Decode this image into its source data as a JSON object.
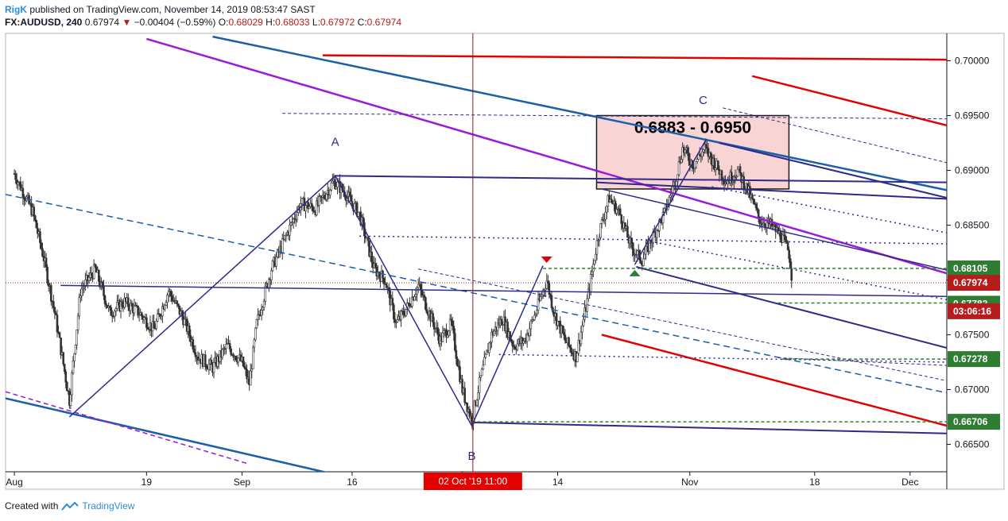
{
  "header": {
    "user": "RigK",
    "published_text": "published on TradingView.com, November 14, 2019 08:53:47 SAST",
    "symbol": "FX:AUDUSD, 240",
    "last": "0.67974",
    "change": "−0.00404 (−0.59%)",
    "open_label": "O:",
    "open": "0.68029",
    "high_label": "H:",
    "high": "0.68033",
    "low_label": "L:",
    "low": "0.67972",
    "close_label": "C:",
    "close": "0.67974"
  },
  "footer": {
    "created_with": "Created with",
    "brand": "TradingView"
  },
  "colors": {
    "up": "#26a69a",
    "down": "#b71c1c",
    "red": "#e50000",
    "blue": "#1b5fa8",
    "navy": "#2e2a8a",
    "purple": "#9b19d8",
    "green": "#2e7d32",
    "zone": "#f9d4d4"
  },
  "chart_data": {
    "type": "candlestick",
    "symbol": "FX:AUDUSD",
    "timeframe": "240",
    "ylim": [
      0.6625,
      0.7025
    ],
    "y_ticks": [
      0.665,
      0.67,
      0.675,
      0.68,
      0.685,
      0.69,
      0.695,
      0.7
    ],
    "y_tick_labels": [
      "0.66500",
      "0.67000",
      "0.67500",
      "0.68000",
      "0.68500",
      "0.69000",
      "0.69500",
      "0.70000"
    ],
    "x_tick_labels": [
      "Aug",
      "19",
      "Sep",
      "16",
      "Oct",
      "14",
      "Nov",
      "18",
      "Dec"
    ],
    "x_tick_days": [
      0,
      18,
      31,
      46,
      61,
      74,
      92,
      109,
      122
    ],
    "x_start": "2019-08-01",
    "xlim_days": [
      -1.2,
      127
    ],
    "crosshair": {
      "day": 62.45,
      "label": "02 Oct '19   11:00"
    },
    "price_labels": [
      {
        "value": 0.68105,
        "label": "0.68105",
        "color": "#2e7d32"
      },
      {
        "value": 0.67974,
        "label": "0.67974",
        "color": "#b71c1c"
      },
      {
        "value": 0.67783,
        "label": "0.67783",
        "color": "#2e7d32"
      },
      {
        "value": 0.67278,
        "label": "0.67278",
        "color": "#2e7d32"
      },
      {
        "value": 0.66706,
        "label": "0.66706",
        "color": "#2e7d32"
      }
    ],
    "countdown": {
      "label": "03:06:16",
      "value": 0.67845,
      "color": "#b71c1c"
    },
    "zone": {
      "label": "0.6883 - 0.6950",
      "low": 0.6883,
      "high": 0.695,
      "day_start": 79.3,
      "day_end": 105.5
    },
    "wave_labels": [
      {
        "text": "A",
        "day": 43.7,
        "value": 0.69225
      },
      {
        "text": "B",
        "day": 62.3,
        "value": 0.6636
      },
      {
        "text": "C",
        "day": 93.8,
        "value": 0.69605
      }
    ],
    "path_points": [
      [
        7.5,
        0.6675
      ],
      [
        43.7,
        0.6895
      ],
      [
        62.3,
        0.6667
      ],
      [
        72,
        0.6813
      ]
    ],
    "abc_points": [
      [
        84.5,
        0.6814
      ],
      [
        94.2,
        0.6928
      ]
    ],
    "key_candles": [
      {
        "day": 0,
        "value": 0.6897
      },
      {
        "day": 2.5,
        "value": 0.6862
      },
      {
        "day": 4,
        "value": 0.682
      },
      {
        "day": 5.5,
        "value": 0.677
      },
      {
        "day": 7.5,
        "value": 0.669
      },
      {
        "day": 9,
        "value": 0.679
      },
      {
        "day": 11,
        "value": 0.681
      },
      {
        "day": 13,
        "value": 0.677
      },
      {
        "day": 15,
        "value": 0.678
      },
      {
        "day": 17,
        "value": 0.677
      },
      {
        "day": 19,
        "value": 0.6755
      },
      {
        "day": 21,
        "value": 0.679
      },
      {
        "day": 23,
        "value": 0.6765
      },
      {
        "day": 25,
        "value": 0.673
      },
      {
        "day": 27,
        "value": 0.672
      },
      {
        "day": 29,
        "value": 0.674
      },
      {
        "day": 31,
        "value": 0.6725
      },
      {
        "day": 32,
        "value": 0.6705
      },
      {
        "day": 33,
        "value": 0.676
      },
      {
        "day": 35,
        "value": 0.681
      },
      {
        "day": 37,
        "value": 0.684
      },
      {
        "day": 39,
        "value": 0.687
      },
      {
        "day": 41,
        "value": 0.6865
      },
      {
        "day": 43.5,
        "value": 0.689
      },
      {
        "day": 45,
        "value": 0.688
      },
      {
        "day": 47,
        "value": 0.686
      },
      {
        "day": 49,
        "value": 0.681
      },
      {
        "day": 50.5,
        "value": 0.68
      },
      {
        "day": 52,
        "value": 0.676
      },
      {
        "day": 53.5,
        "value": 0.6775
      },
      {
        "day": 55,
        "value": 0.6795
      },
      {
        "day": 56.5,
        "value": 0.677
      },
      {
        "day": 58,
        "value": 0.6745
      },
      {
        "day": 59.5,
        "value": 0.676
      },
      {
        "day": 61,
        "value": 0.67
      },
      {
        "day": 62.3,
        "value": 0.6672
      },
      {
        "day": 63.5,
        "value": 0.671
      },
      {
        "day": 65,
        "value": 0.675
      },
      {
        "day": 66.5,
        "value": 0.6765
      },
      {
        "day": 68,
        "value": 0.674
      },
      {
        "day": 69.5,
        "value": 0.6745
      },
      {
        "day": 71,
        "value": 0.677
      },
      {
        "day": 72.5,
        "value": 0.68
      },
      {
        "day": 73.5,
        "value": 0.677
      },
      {
        "day": 75,
        "value": 0.6745
      },
      {
        "day": 76.5,
        "value": 0.673
      },
      {
        "day": 78,
        "value": 0.678
      },
      {
        "day": 79.5,
        "value": 0.684
      },
      {
        "day": 81,
        "value": 0.6875
      },
      {
        "day": 82.5,
        "value": 0.686
      },
      {
        "day": 84,
        "value": 0.683
      },
      {
        "day": 85.5,
        "value": 0.6818
      },
      {
        "day": 87,
        "value": 0.684
      },
      {
        "day": 88.5,
        "value": 0.686
      },
      {
        "day": 90,
        "value": 0.689
      },
      {
        "day": 91,
        "value": 0.692
      },
      {
        "day": 92.5,
        "value": 0.6905
      },
      {
        "day": 94,
        "value": 0.692
      },
      {
        "day": 95.5,
        "value": 0.6905
      },
      {
        "day": 97,
        "value": 0.689
      },
      {
        "day": 98.5,
        "value": 0.69
      },
      {
        "day": 100,
        "value": 0.688
      },
      {
        "day": 101.5,
        "value": 0.6855
      },
      {
        "day": 103,
        "value": 0.685
      },
      {
        "day": 104.5,
        "value": 0.684
      },
      {
        "day": 105.5,
        "value": 0.6825
      },
      {
        "day": 106,
        "value": 0.6797
      }
    ],
    "trendlines": [
      {
        "name": "red-top-channel",
        "color": "#e50000",
        "width": 2.5,
        "dash": "",
        "p1": [
          42,
          0.7005
        ],
        "p2": [
          127,
          0.7001
        ]
      },
      {
        "name": "red-short-upper",
        "color": "#e50000",
        "width": 2.5,
        "dash": "",
        "p1": [
          100.5,
          0.6986
        ],
        "p2": [
          127,
          0.6941
        ]
      },
      {
        "name": "red-lower-channel",
        "color": "#e50000",
        "width": 2.5,
        "dash": "",
        "p1": [
          80,
          0.675
        ],
        "p2": [
          127,
          0.6667
        ]
      },
      {
        "name": "blue-top-channel",
        "color": "#1b5fa8",
        "width": 2.5,
        "dash": "",
        "p1": [
          27,
          0.7022
        ],
        "p2": [
          127,
          0.6882
        ]
      },
      {
        "name": "blue-bottom-channel",
        "color": "#1b5fa8",
        "width": 2.5,
        "dash": "",
        "p1": [
          -1.2,
          0.6692
        ],
        "p2": [
          44,
          0.6622
        ]
      },
      {
        "name": "blue-dashed-median",
        "color": "#1b5fa8",
        "width": 1.5,
        "dash": "8,5",
        "p1": [
          -1.2,
          0.6878
        ],
        "p2": [
          127,
          0.6697
        ]
      },
      {
        "name": "purple-trend",
        "color": "#9b19d8",
        "width": 2.5,
        "dash": "",
        "p1": [
          18,
          0.702
        ],
        "p2": [
          127,
          0.6806
        ]
      },
      {
        "name": "purple-dashed",
        "color": "#9b19d8",
        "width": 1.5,
        "dash": "6,4",
        "p1": [
          -1.2,
          0.6698
        ],
        "p2": [
          32,
          0.6632
        ]
      },
      {
        "name": "navy-resistance",
        "color": "#2e2a8a",
        "width": 2,
        "dash": "",
        "p1": [
          43.7,
          0.6895
        ],
        "p2": [
          127,
          0.6889
        ]
      },
      {
        "name": "navy-midline",
        "color": "#2e2a8a",
        "width": 1.5,
        "dash": "",
        "p1": [
          6.3,
          0.6795
        ],
        "p2": [
          127,
          0.6785
        ]
      },
      {
        "name": "navy-support-b",
        "color": "#2e2a8a",
        "width": 2,
        "dash": "",
        "p1": [
          62.3,
          0.667
        ],
        "p2": [
          127,
          0.666
        ]
      },
      {
        "name": "navy-channel-upper",
        "color": "#2e2a8a",
        "width": 1.5,
        "dash": "",
        "p1": [
          80,
          0.6883
        ],
        "p2": [
          127,
          0.6809
        ]
      },
      {
        "name": "navy-channel-lower",
        "color": "#2e2a8a",
        "width": 2,
        "dash": "",
        "p1": [
          84.7,
          0.6812
        ],
        "p2": [
          127,
          0.6738
        ]
      },
      {
        "name": "navy-zone-line",
        "color": "#2e2a8a",
        "width": 2,
        "dash": "",
        "p1": [
          79.3,
          0.6889
        ],
        "p2": [
          127,
          0.6874
        ]
      },
      {
        "name": "navy-steep-upper",
        "color": "#2e2a8a",
        "width": 2,
        "dash": "",
        "p1": [
          96,
          0.6925
        ],
        "p2": [
          127,
          0.6875
        ]
      },
      {
        "name": "thin-dashed-top",
        "color": "#2e2a8a",
        "width": 1,
        "dash": "4,3",
        "p1": [
          36.5,
          0.6952
        ],
        "p2": [
          127,
          0.6947
        ]
      },
      {
        "name": "thin-dashed-fan-a",
        "color": "#2e2a8a",
        "width": 1,
        "dash": "4,3",
        "p1": [
          96.5,
          0.6957
        ],
        "p2": [
          127,
          0.6907
        ]
      },
      {
        "name": "thin-dashed-fan-b",
        "color": "#2e2a8a",
        "width": 1,
        "dash": "4,3",
        "p1": [
          55,
          0.681
        ],
        "p2": [
          127,
          0.6708
        ]
      },
      {
        "name": "thin-dashed-fan-c",
        "color": "#2e2a8a",
        "width": 1,
        "dash": "4,3",
        "p1": [
          104,
          0.6729
        ],
        "p2": [
          127,
          0.6722
        ]
      },
      {
        "name": "dotted-fan-1",
        "color": "#2e2a8a",
        "width": 1.5,
        "dash": "2,4",
        "p1": [
          95,
          0.6885
        ],
        "p2": [
          127,
          0.6843
        ]
      },
      {
        "name": "dotted-fan-2",
        "color": "#2e2a8a",
        "width": 1.5,
        "dash": "2,4",
        "p1": [
          86,
          0.6836
        ],
        "p2": [
          127,
          0.6782
        ]
      },
      {
        "name": "dotted-h-1",
        "color": "#2e2a8a",
        "width": 1.5,
        "dash": "2,4",
        "p1": [
          47,
          0.684
        ],
        "p2": [
          127,
          0.6833
        ]
      },
      {
        "name": "dotted-h-2",
        "color": "#2e2a8a",
        "width": 1.5,
        "dash": "2,4",
        "p1": [
          66,
          0.6732
        ],
        "p2": [
          127,
          0.6725
        ]
      },
      {
        "name": "green-dashed-68105",
        "color": "#2e7d32",
        "width": 1.5,
        "dash": "4,3",
        "p1": [
          72,
          0.68105
        ],
        "p2": [
          127,
          0.68105
        ]
      },
      {
        "name": "green-dashed-67783",
        "color": "#2e7d32",
        "width": 1.5,
        "dash": "4,3",
        "p1": [
          104,
          0.6779
        ],
        "p2": [
          127,
          0.6779
        ]
      },
      {
        "name": "green-dashed-67278",
        "color": "#2e7d32",
        "width": 1.5,
        "dash": "4,3",
        "p1": [
          104.5,
          0.67278
        ],
        "p2": [
          127,
          0.67278
        ]
      },
      {
        "name": "green-dashed-66706",
        "color": "#2e7d32",
        "width": 1.5,
        "dash": "4,3",
        "p1": [
          62.3,
          0.66706
        ],
        "p2": [
          127,
          0.66706
        ]
      }
    ]
  }
}
